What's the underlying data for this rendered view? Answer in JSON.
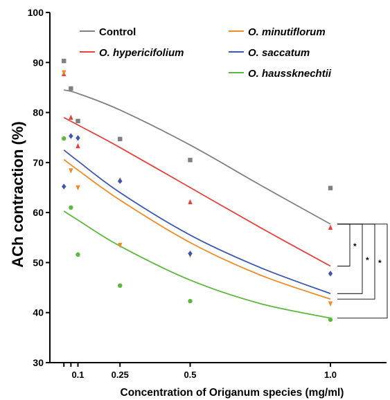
{
  "chart_data": {
    "type": "scatter",
    "title": "",
    "xlabel": "Concentration of Origanum species (mg/ml)",
    "ylabel": "ACh contraction (%)",
    "xlim": [
      0,
      1.2
    ],
    "ylim": [
      30,
      100
    ],
    "x_ticks": [
      0.1,
      0.25,
      0.5,
      1.0
    ],
    "x_tick_labels": [
      "0.1",
      "0.25",
      "0.5",
      "1.0"
    ],
    "y_ticks": [
      30,
      40,
      50,
      60,
      70,
      80,
      90,
      100
    ],
    "y_tick_labels": [
      "30",
      "40",
      "50",
      "60",
      "70",
      "80",
      "90",
      "100"
    ],
    "legend_position": "top",
    "grid": false,
    "series": [
      {
        "name": "Control",
        "color": "#808080",
        "marker": "square",
        "points": [
          [
            0.05,
            90.3
          ],
          [
            0.075,
            84.8
          ],
          [
            0.1,
            78.3
          ],
          [
            0.25,
            74.7
          ],
          [
            0.5,
            70.5
          ],
          [
            1.0,
            64.9
          ]
        ],
        "fit": [
          [
            0.05,
            84.5
          ],
          [
            0.1,
            83.8
          ],
          [
            0.25,
            80.5
          ],
          [
            0.5,
            73.5
          ],
          [
            0.75,
            65.5
          ],
          [
            1.0,
            57.7
          ]
        ]
      },
      {
        "name": "O. hypericifolium",
        "color": "#e8403a",
        "marker": "triangle-up",
        "points": [
          [
            0.05,
            87.7
          ],
          [
            0.075,
            79.0
          ],
          [
            0.1,
            73.3
          ],
          [
            0.25,
            66.5
          ],
          [
            0.5,
            62.1
          ],
          [
            1.0,
            57.0
          ]
        ],
        "fit": [
          [
            0.05,
            79.0
          ],
          [
            0.1,
            77.5
          ],
          [
            0.25,
            73.0
          ],
          [
            0.5,
            65.0
          ],
          [
            0.75,
            57.0
          ],
          [
            1.0,
            49.3
          ]
        ]
      },
      {
        "name": "O. minutiflorum",
        "color": "#f08a24",
        "marker": "triangle-down",
        "points": [
          [
            0.05,
            88.0
          ],
          [
            0.075,
            68.4
          ],
          [
            0.1,
            65.0
          ],
          [
            0.25,
            53.5
          ],
          [
            0.5,
            51.5
          ],
          [
            1.0,
            41.8
          ]
        ],
        "fit": [
          [
            0.05,
            70.6
          ],
          [
            0.1,
            68.5
          ],
          [
            0.25,
            62.5
          ],
          [
            0.5,
            54.0
          ],
          [
            0.75,
            47.5
          ],
          [
            1.0,
            42.7
          ]
        ]
      },
      {
        "name": "O. saccatum",
        "color": "#3b57b0",
        "marker": "diamond",
        "points": [
          [
            0.05,
            65.2
          ],
          [
            0.075,
            75.3
          ],
          [
            0.1,
            74.9
          ],
          [
            0.25,
            66.3
          ],
          [
            0.5,
            51.8
          ],
          [
            1.0,
            47.8
          ]
        ],
        "fit": [
          [
            0.05,
            72.5
          ],
          [
            0.1,
            70.3
          ],
          [
            0.25,
            64.0
          ],
          [
            0.5,
            55.5
          ],
          [
            0.75,
            49.0
          ],
          [
            1.0,
            43.8
          ]
        ]
      },
      {
        "name": "O. haussknechtii",
        "color": "#5cb83a",
        "marker": "circle",
        "points": [
          [
            0.05,
            74.8
          ],
          [
            0.075,
            61.0
          ],
          [
            0.1,
            51.6
          ],
          [
            0.25,
            45.4
          ],
          [
            0.5,
            42.3
          ],
          [
            1.0,
            38.6
          ]
        ],
        "fit": [
          [
            0.05,
            60.3
          ],
          [
            0.1,
            58.5
          ],
          [
            0.25,
            53.3
          ],
          [
            0.5,
            46.5
          ],
          [
            0.75,
            41.8
          ],
          [
            1.0,
            38.9
          ]
        ]
      }
    ],
    "significance": [
      {
        "label": "*",
        "from": 57.7,
        "to": 49.3
      },
      {
        "label": "*",
        "from": 57.7,
        "to": 43.8
      },
      {
        "label": "*",
        "from": 57.7,
        "to": 42.7
      },
      {
        "label": "**",
        "from": 57.7,
        "to": 38.9
      }
    ]
  }
}
